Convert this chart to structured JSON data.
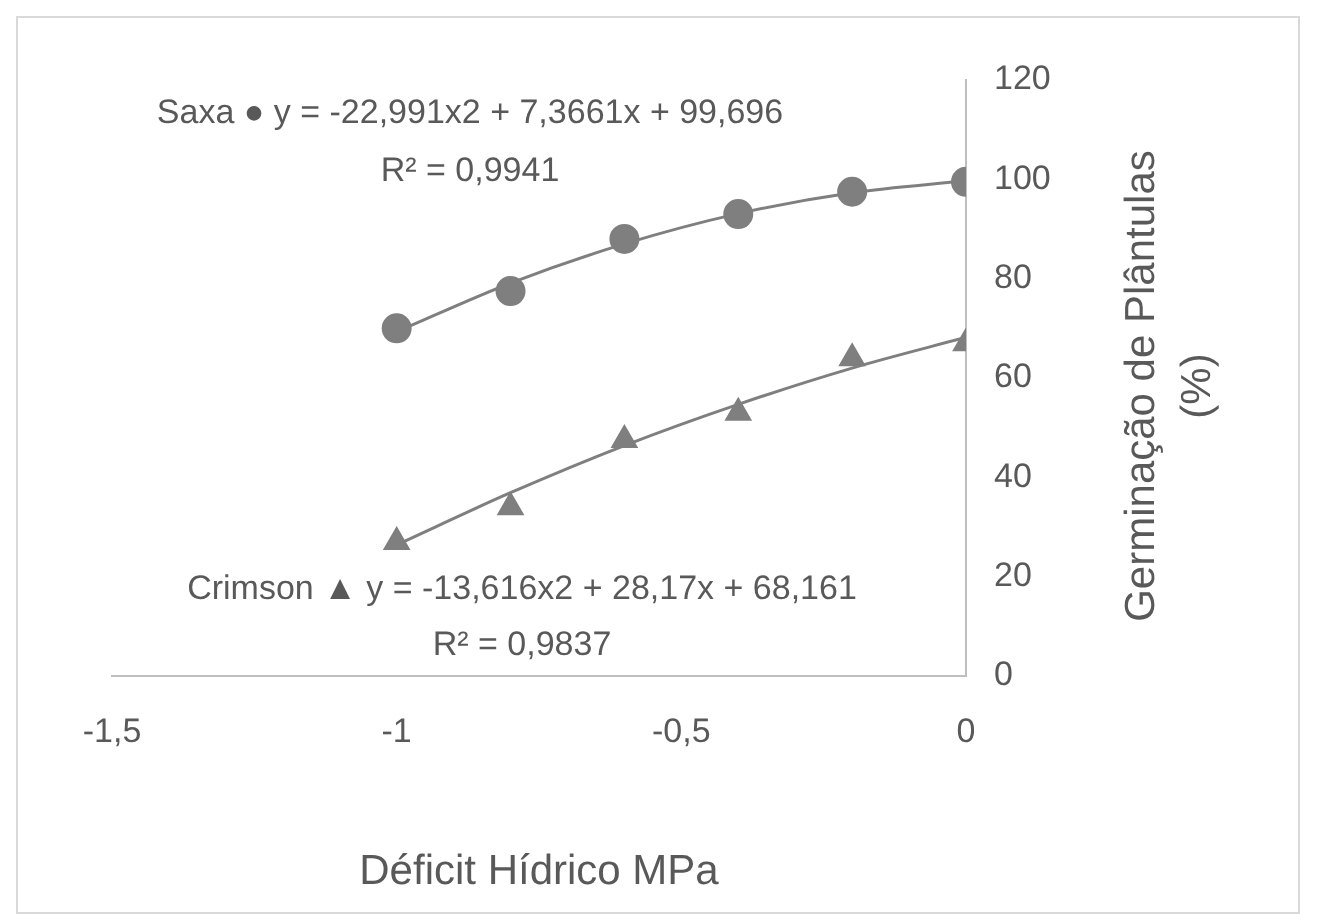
{
  "chart_data": {
    "type": "scatter",
    "xlabel": "Déficit Hídrico MPa",
    "ylabel": "Germinação de Plântulas (%)",
    "xlim": [
      -1.5,
      0
    ],
    "xticks": [
      {
        "value": -1.5,
        "label": "-1,5"
      },
      -1,
      {
        "value": -0.5,
        "label": "-0,5"
      },
      0
    ],
    "ylim": [
      0,
      120
    ],
    "yticks": [
      0,
      20,
      40,
      60,
      80,
      100,
      120
    ],
    "grid": false,
    "legend": false,
    "series": [
      {
        "marker": "circle",
        "color": "#7f7f7f",
        "x": [
          -1,
          -0.8,
          -0.6,
          -0.4,
          -0.2,
          0
        ],
        "values": [
          70,
          77.5,
          88,
          93,
          97.5,
          99.5
        ]
      },
      {
        "marker": "triangle",
        "color": "#7f7f7f",
        "x": [
          -1,
          -0.8,
          -0.6,
          -0.4,
          -0.2,
          0
        ],
        "values": [
          27,
          34,
          47.5,
          53,
          64,
          67
        ]
      },
      {
        "type": "line",
        "color": "#7f7f7f",
        "x": [
          -1,
          -0.8,
          -0.6,
          -0.4,
          -0.2,
          0
        ],
        "values": [
          69.3,
          79.1,
          87.0,
          93.1,
          97.3,
          99.7
        ]
      },
      {
        "type": "line",
        "color": "#7f7f7f",
        "x": [
          -1,
          -0.8,
          -0.6,
          -0.4,
          -0.2,
          0
        ],
        "values": [
          26.4,
          36.9,
          46.4,
          54.7,
          62.0,
          68.2
        ]
      }
    ],
    "annotations": [
      "Saxa ● y = -22,991x2 + 7,3661x + 99,696",
      "R² = 0,9941",
      "Crimson ▲ y = -13,616x2 + 28,17x + 68,161",
      "R² = 0,9837"
    ]
  }
}
